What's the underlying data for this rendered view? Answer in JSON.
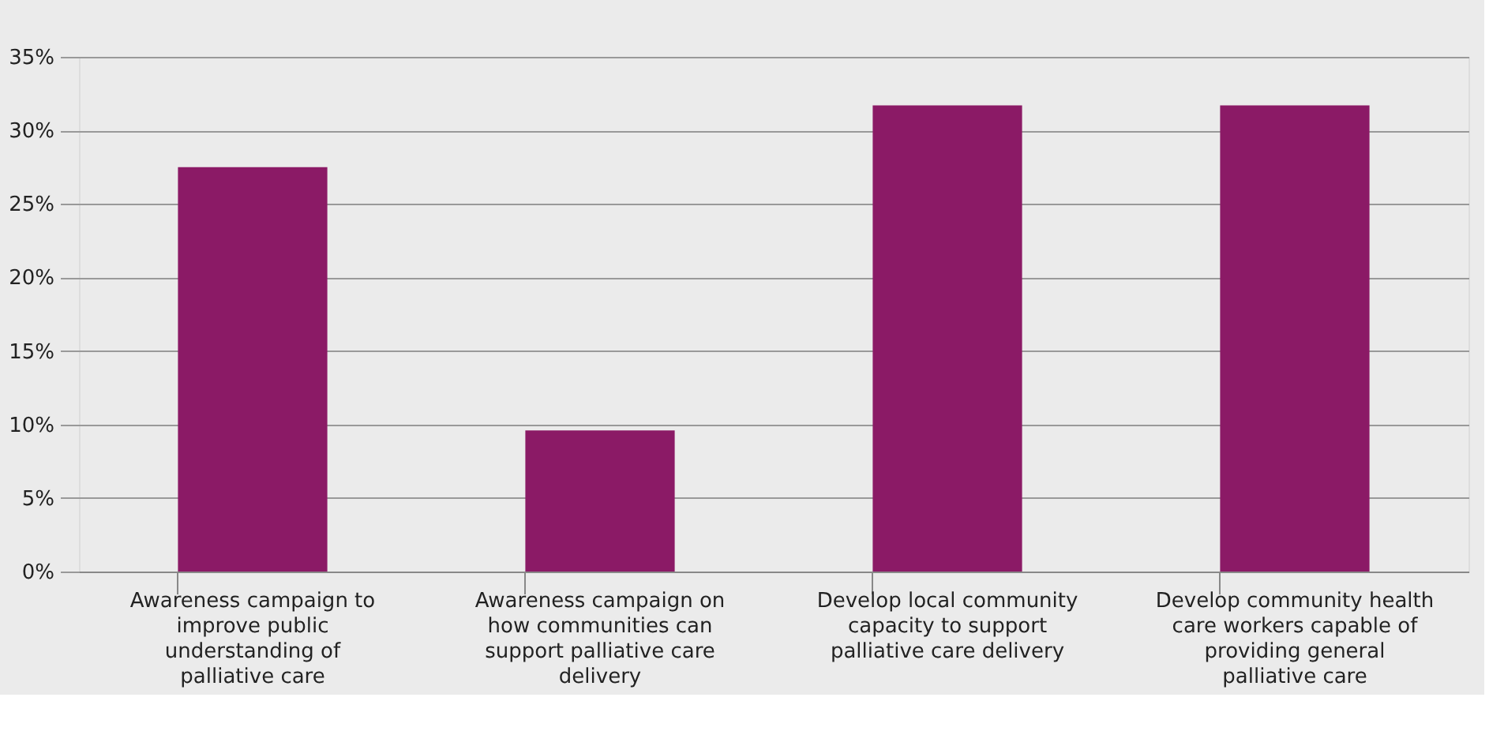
{
  "chart_data": {
    "type": "bar",
    "categories": [
      "Awareness campaign to improve public understanding of palliative care",
      "Awareness campaign on how communities can support palliative care delivery",
      "Develop local community capacity to support palliative care delivery",
      "Develop community health care workers capable of providing general palliative care"
    ],
    "values": [
      27.5,
      9.6,
      31.7,
      31.7
    ],
    "color": "#8b1a66",
    "ylim": [
      0,
      35
    ],
    "yticks": [
      {
        "value": 0,
        "label": "0%"
      },
      {
        "value": 5,
        "label": "5%"
      },
      {
        "value": 10,
        "label": "10%"
      },
      {
        "value": 15,
        "label": "15%"
      },
      {
        "value": 20,
        "label": "20%"
      },
      {
        "value": 25,
        "label": "25%"
      },
      {
        "value": 30,
        "label": "30%"
      },
      {
        "value": 35,
        "label": "35%"
      }
    ],
    "grid": "y"
  }
}
